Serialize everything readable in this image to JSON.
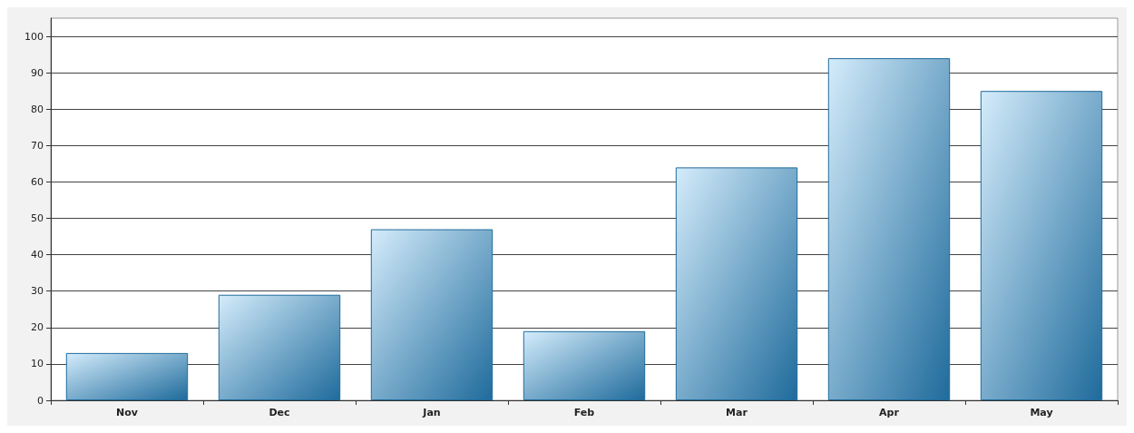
{
  "chart_data": {
    "type": "bar",
    "categories": [
      "Nov",
      "Dec",
      "Jan",
      "Feb",
      "Mar",
      "Apr",
      "May"
    ],
    "values": [
      13,
      29,
      47,
      19,
      64,
      94,
      85
    ],
    "color": "#1f6b9c",
    "ylim": [
      0,
      105
    ],
    "yticks": [
      0,
      10,
      20,
      30,
      40,
      50,
      60,
      70,
      80,
      90,
      100
    ],
    "grid": "y"
  }
}
